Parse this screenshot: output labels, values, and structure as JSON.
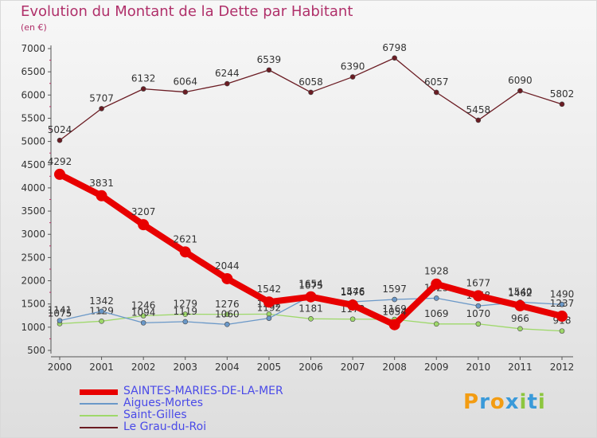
{
  "title": "Evolution du Montant de la Dette par Habitant",
  "subtitle": "(en €)",
  "brand": {
    "text": "Proxiti",
    "colors": [
      "#f39c12",
      "#3a9ad9",
      "#f39c12",
      "#3a9ad9",
      "#8dc63f",
      "#3a9ad9",
      "#8dc63f"
    ]
  },
  "chart_data": {
    "type": "line",
    "categories": [
      "2000",
      "2001",
      "2002",
      "2003",
      "2004",
      "2005",
      "2006",
      "2007",
      "2008",
      "2009",
      "2010",
      "2011",
      "2012"
    ],
    "ylim": [
      500,
      7000
    ],
    "yticks": [
      500,
      1000,
      1500,
      2000,
      2500,
      3000,
      3500,
      4000,
      4500,
      5000,
      5500,
      6000,
      6500,
      7000
    ],
    "grid": false,
    "legend_position": "bottom",
    "series": [
      {
        "name": "Le Grau-du-Roi",
        "color": "#6b1c23",
        "values": [
          5024,
          5707,
          6132,
          6064,
          6244,
          6539,
          6058,
          6390,
          6798,
          6057,
          5458,
          6090,
          5802
        ]
      },
      {
        "name": "Saint-Gilles",
        "color": "#9ed86a",
        "values": [
          1075,
          1129,
          1246,
          1279,
          1276,
          1282,
          1181,
          1173,
          1169,
          1069,
          1070,
          966,
          918
        ]
      },
      {
        "name": "Aigues-Mortes",
        "color": "#6a98c8",
        "values": [
          1141,
          1342,
          1094,
          1119,
          1060,
          1192,
          1675,
          1546,
          1597,
          1625,
          1458,
          1540,
          1490
        ]
      },
      {
        "name": "SAINTES-MARIES-DE-LA-MER",
        "color": "#e80000",
        "values": [
          4292,
          3831,
          3207,
          2621,
          2044,
          1542,
          1654,
          1476,
          1054,
          1928,
          1677,
          1462,
          1237
        ]
      }
    ]
  },
  "legend": [
    {
      "label": "SAINTES-MARIES-DE-LA-MER",
      "color": "#e80000",
      "thickness": 7
    },
    {
      "label": "Aigues-Mortes",
      "color": "#6a98c8",
      "thickness": 2
    },
    {
      "label": "Saint-Gilles",
      "color": "#9ed86a",
      "thickness": 2
    },
    {
      "label": "Le Grau-du-Roi",
      "color": "#6b1c23",
      "thickness": 2
    }
  ]
}
